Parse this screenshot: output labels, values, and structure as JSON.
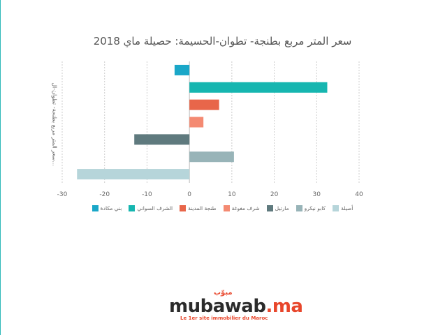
{
  "chart_data": {
    "type": "bar",
    "orientation": "horizontal",
    "title": "سعر المتر مربع بطنجة- تطوان-الحسيمة: حصيلة ماي 2018",
    "ylabel": "سعر المتر مربع بطنجة- تطوان-ال...",
    "xlabel": "",
    "xlim": [
      -30,
      40
    ],
    "xticks": [
      -30,
      -20,
      -10,
      0,
      10,
      20,
      30,
      40
    ],
    "grid": true,
    "legend_position": "bottom",
    "series": [
      {
        "name": "بني مكادة",
        "value": -3.5,
        "color": "#1aa7c8"
      },
      {
        "name": "الشرف السواني",
        "value": 32.5,
        "color": "#16b6b0"
      },
      {
        "name": "طنجة المدينة",
        "value": 7,
        "color": "#e8664a"
      },
      {
        "name": "شرف مغوغة",
        "value": 3.3,
        "color": "#f48a72"
      },
      {
        "name": "مارتيل",
        "value": -13,
        "color": "#5f7a7e"
      },
      {
        "name": "كابو نيكرو",
        "value": 10.5,
        "color": "#98b4b8"
      },
      {
        "name": "أصيلة",
        "value": -26.5,
        "color": "#b6d5da"
      }
    ]
  },
  "logo": {
    "main": "mubawab",
    "suffix": ".ma",
    "arabic": "مبوّب",
    "tagline": "Le 1er site immobilier du Maroc"
  }
}
